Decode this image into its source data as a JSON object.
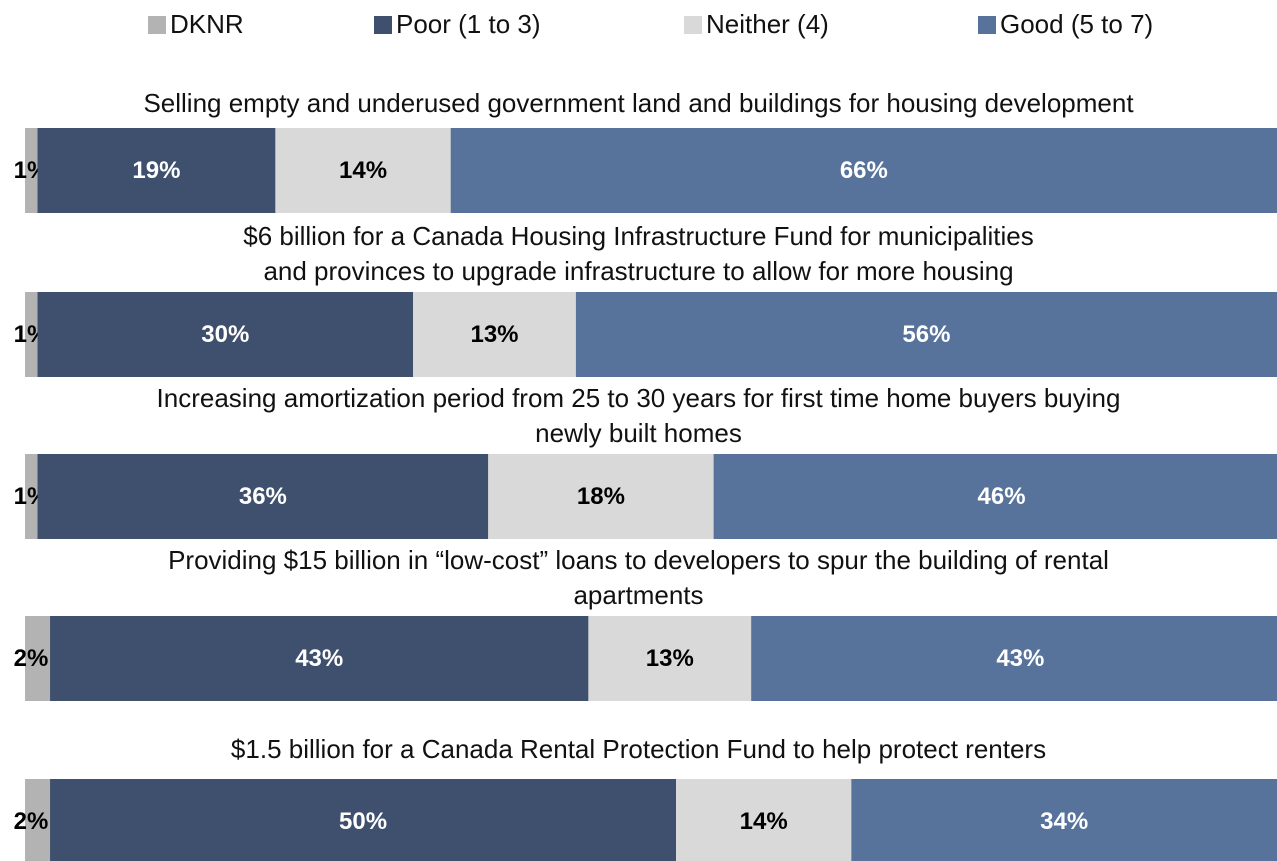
{
  "chart_data": {
    "type": "stacked-bar-horizontal",
    "categories": [
      "Selling empty and underused government land and buildings for housing development",
      "$6 billion for a Canada Housing Infrastructure Fund for municipalities\nand provinces to upgrade infrastructure to allow for more housing",
      "Increasing amortization period from 25 to 30 years for first time home buyers buying\nnewly built homes",
      "Providing $15 billion in “low-cost” loans to developers to spur the building of rental\napartments",
      "$1.5 billion for a Canada Rental Protection Fund to help protect renters"
    ],
    "series": [
      {
        "name": "DKNR",
        "color": "#b3b3b3",
        "values": [
          1,
          1,
          1,
          2,
          2
        ],
        "value_labels": [
          "1%",
          "1%",
          "1%",
          "2%",
          "2%"
        ]
      },
      {
        "name": "Poor (1 to 3)",
        "color": "#3e506e",
        "values": [
          19,
          30,
          36,
          43,
          50
        ],
        "value_labels": [
          "19%",
          "30%",
          "36%",
          "43%",
          "50%"
        ]
      },
      {
        "name": "Neither (4)",
        "color": "#d9d9d9",
        "values": [
          14,
          13,
          18,
          13,
          14
        ],
        "value_labels": [
          "14%",
          "13%",
          "18%",
          "13%",
          "14%"
        ]
      },
      {
        "name": "Good (5 to 7)",
        "color": "#57739b",
        "values": [
          66,
          56,
          46,
          43,
          34
        ],
        "value_labels": [
          "66%",
          "56%",
          "46%",
          "43%",
          "34%"
        ]
      }
    ],
    "xlim": [
      0,
      100
    ]
  }
}
